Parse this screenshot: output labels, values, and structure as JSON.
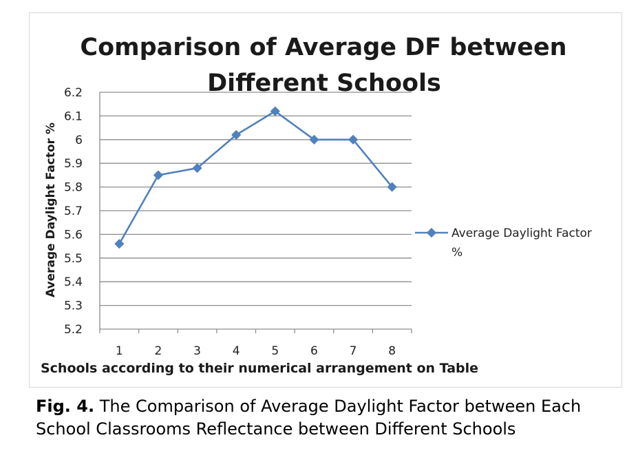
{
  "chart_data": {
    "type": "line",
    "title_lines": [
      "Comparison of Average DF between",
      "Different Schools"
    ],
    "xlabel": "Schools according to their numerical arrangement on Table",
    "ylabel": "Average Daylight  Factor %",
    "categories": [
      "1",
      "2",
      "3",
      "4",
      "5",
      "6",
      "7",
      "8"
    ],
    "yticks": [
      "5.2",
      "5.3",
      "5.4",
      "5.5",
      "5.6",
      "5.7",
      "5.8",
      "5.9",
      "6",
      "6.1",
      "6.2"
    ],
    "ylim": [
      5.2,
      6.2
    ],
    "grid": true,
    "legend_position": "right",
    "series": [
      {
        "name_lines": [
          "Average Daylight Factor",
          "%"
        ],
        "values": [
          5.56,
          5.85,
          5.88,
          6.02,
          6.12,
          6.0,
          6.0,
          5.8
        ],
        "color": "#4f81bd"
      }
    ]
  },
  "caption": {
    "label": "Fig. 4.",
    "text_line1": "The Comparison of Average Daylight Factor between Each",
    "text_line2": "School Classrooms Reflectance between Different Schools"
  }
}
